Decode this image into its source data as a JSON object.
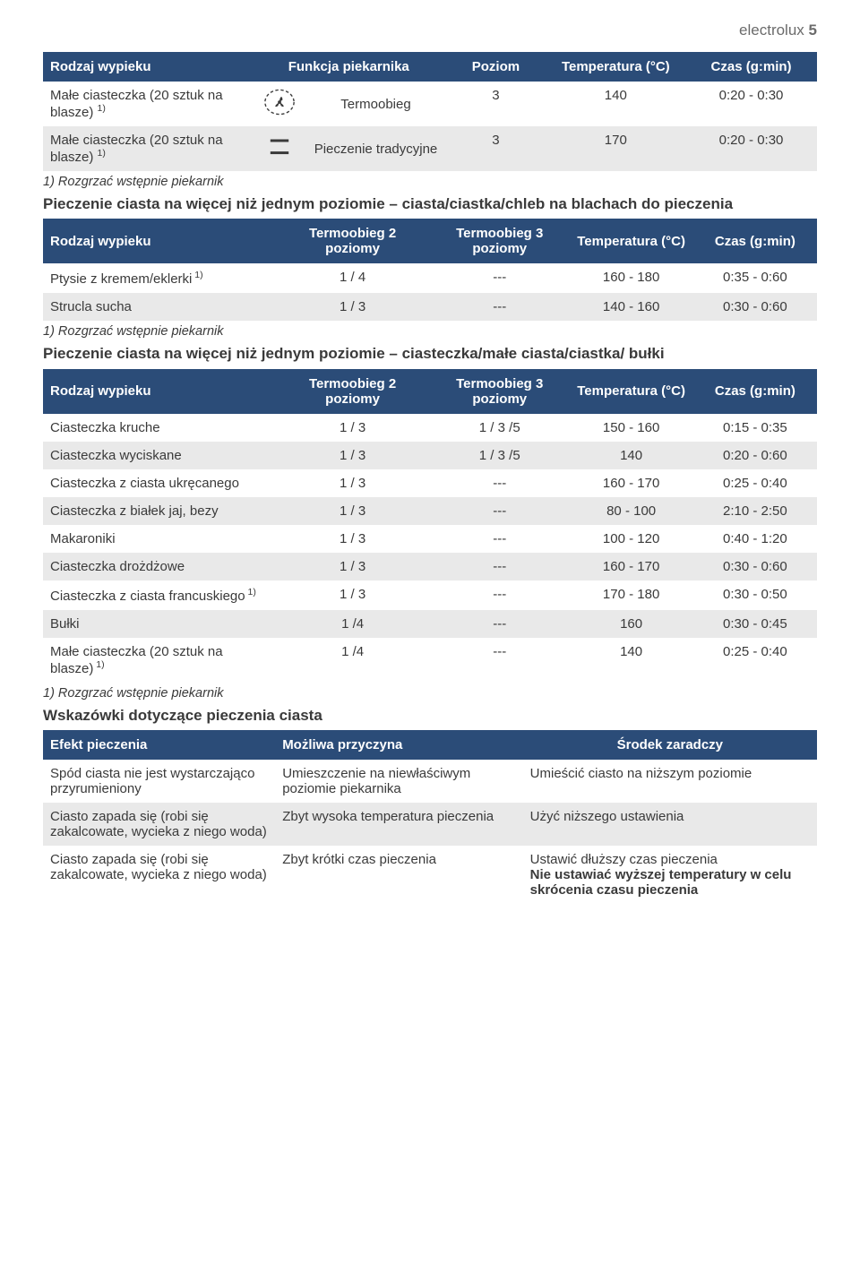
{
  "header": {
    "brand": "electrolux",
    "page": "5"
  },
  "table1": {
    "headers": {
      "col1": "Rodzaj wypieku",
      "col2": "Funkcja piekarnika",
      "col3": "Poziom",
      "col4": "Temperatura (°C)",
      "col5": "Czas (g:min)"
    },
    "rows": [
      {
        "name": "Małe ciasteczka (20 sztuk na blasze)",
        "sup": "1)",
        "icon": "fan",
        "func": "Termoobieg",
        "level": "3",
        "temp": "140",
        "time": "0:20 - 0:30"
      },
      {
        "name": "Małe ciasteczka (20 sztuk na blasze)",
        "sup": "1)",
        "icon": "conv",
        "func": "Pieczenie tradycyjne",
        "level": "3",
        "temp": "170",
        "time": "0:20 - 0:30"
      }
    ],
    "footnote": "1) Rozgrzać wstępnie piekarnik"
  },
  "section2": {
    "title": "Pieczenie ciasta na więcej niż jednym poziomie – ciasta/ciastka/chleb na blachach do pieczenia",
    "headers": {
      "col1": "Rodzaj wypieku",
      "col2": "Termoobieg 2 poziomy",
      "col3": "Termoobieg 3 poziomy",
      "col4": "Temperatura (°C)",
      "col5": "Czas (g:min)"
    },
    "rows": [
      {
        "name": "Ptysie z kremem/eklerki",
        "sup": "1)",
        "c2": "1 / 4",
        "c3": "---",
        "temp": "160 - 180",
        "time": "0:35 - 0:60"
      },
      {
        "name": "Strucla sucha",
        "sup": "",
        "c2": "1 / 3",
        "c3": "---",
        "temp": "140 - 160",
        "time": "0:30 - 0:60"
      }
    ],
    "footnote": "1) Rozgrzać wstępnie piekarnik"
  },
  "section3": {
    "title": "Pieczenie ciasta na więcej niż jednym poziomie – ciasteczka/małe ciasta/ciastka/ bułki",
    "headers": {
      "col1": "Rodzaj wypieku",
      "col2": "Termoobieg 2 poziomy",
      "col3": "Termoobieg 3 poziomy",
      "col4": "Temperatura (°C)",
      "col5": "Czas (g:min)"
    },
    "rows": [
      {
        "name": "Ciasteczka kruche",
        "sup": "",
        "c2": "1 / 3",
        "c3": "1 / 3 /5",
        "temp": "150 - 160",
        "time": "0:15 - 0:35"
      },
      {
        "name": "Ciasteczka wyciskane",
        "sup": "",
        "c2": "1 / 3",
        "c3": "1 / 3 /5",
        "temp": "140",
        "time": "0:20 - 0:60"
      },
      {
        "name": "Ciasteczka z ciasta ukręcanego",
        "sup": "",
        "c2": "1 / 3",
        "c3": "---",
        "temp": "160 - 170",
        "time": "0:25 - 0:40"
      },
      {
        "name": "Ciasteczka z białek jaj, bezy",
        "sup": "",
        "c2": "1 / 3",
        "c3": "---",
        "temp": "80 - 100",
        "time": "2:10 - 2:50"
      },
      {
        "name": "Makaroniki",
        "sup": "",
        "c2": "1 / 3",
        "c3": "---",
        "temp": "100 - 120",
        "time": "0:40 - 1:20"
      },
      {
        "name": "Ciasteczka drożdżowe",
        "sup": "",
        "c2": "1 / 3",
        "c3": "---",
        "temp": "160 - 170",
        "time": "0:30 - 0:60"
      },
      {
        "name": "Ciasteczka z ciasta francuskiego",
        "sup": "1)",
        "c2": "1 / 3",
        "c3": "---",
        "temp": "170 - 180",
        "time": "0:30 - 0:50"
      },
      {
        "name": "Bułki",
        "sup": "",
        "c2": "1 /4",
        "c3": "---",
        "temp": "160",
        "time": "0:30 - 0:45"
      },
      {
        "name": "Małe ciasteczka (20 sztuk na blasze)",
        "sup": "1)",
        "c2": "1 /4",
        "c3": "---",
        "temp": "140",
        "time": "0:25 - 0:40"
      }
    ],
    "footnote": "1) Rozgrzać wstępnie piekarnik"
  },
  "section4": {
    "title": "Wskazówki dotyczące pieczenia ciasta",
    "headers": {
      "col1": "Efekt pieczenia",
      "col2": "Możliwa przyczyna",
      "col3": "Środek zaradczy"
    },
    "rows": [
      {
        "c1": "Spód ciasta nie jest wystarczająco przyrumieniony",
        "c2": "Umieszczenie na niewłaściwym poziomie piekarnika",
        "c3": "Umieścić ciasto na niższym poziomie",
        "c3b": ""
      },
      {
        "c1": "Ciasto zapada się (robi się zakalcowate, wycieka z niego woda)",
        "c2": "Zbyt wysoka temperatura pieczenia",
        "c3": "Użyć niższego ustawienia",
        "c3b": ""
      },
      {
        "c1": "Ciasto zapada się (robi się zakalcowate, wycieka z niego woda)",
        "c2": "Zbyt krótki czas pieczenia",
        "c3": "Ustawić dłuższy czas pieczenia",
        "c3b": "Nie ustawiać wyższej temperatury w celu skrócenia czasu pieczenia"
      }
    ]
  }
}
